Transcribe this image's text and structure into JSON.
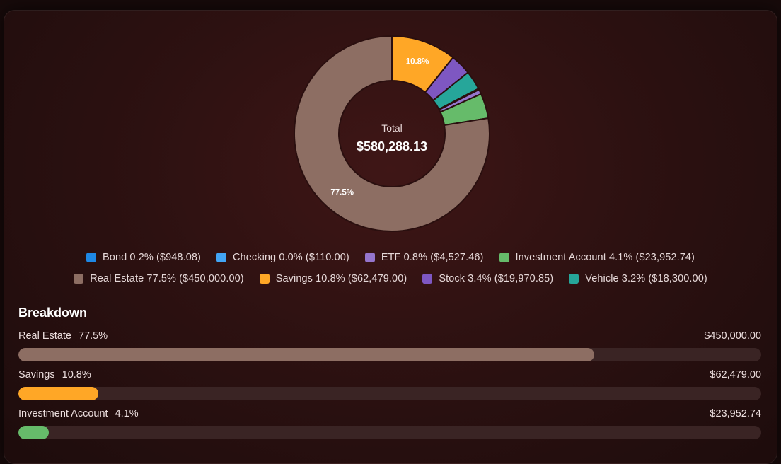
{
  "chart_data": {
    "type": "pie",
    "center_label": "Total",
    "center_value": "$580,288.13",
    "slices": [
      {
        "name": "Bond",
        "percent": 0.2,
        "value": 948.08,
        "legend": "Bond 0.2% ($948.08)",
        "color": "#1e88e5"
      },
      {
        "name": "Checking",
        "percent": 0.0,
        "value": 110.0,
        "legend": "Checking 0.0% ($110.00)",
        "color": "#42a5f5"
      },
      {
        "name": "ETF",
        "percent": 0.8,
        "value": 4527.46,
        "legend": "ETF 0.8% ($4,527.46)",
        "color": "#9575cd"
      },
      {
        "name": "Investment Account",
        "percent": 4.1,
        "value": 23952.74,
        "legend": "Investment Account 4.1% ($23,952.74)",
        "color": "#66bb6a"
      },
      {
        "name": "Real Estate",
        "percent": 77.5,
        "value": 450000.0,
        "legend": "Real Estate 77.5% ($450,000.00)",
        "color": "#8d6e63",
        "label": "77.5%"
      },
      {
        "name": "Savings",
        "percent": 10.8,
        "value": 62479.0,
        "legend": "Savings 10.8% ($62,479.00)",
        "color": "#ffa726",
        "label": "10.8%"
      },
      {
        "name": "Stock",
        "percent": 3.4,
        "value": 19970.85,
        "legend": "Stock 3.4% ($19,970.85)",
        "color": "#7e57c2"
      },
      {
        "name": "Vehicle",
        "percent": 3.2,
        "value": 18300.0,
        "legend": "Vehicle 3.2% ($18,300.00)",
        "color": "#26a69a"
      }
    ],
    "draw_order": [
      "Savings",
      "Stock",
      "Vehicle",
      "Checking",
      "Bond",
      "ETF",
      "Investment Account",
      "Real Estate"
    ]
  },
  "breakdown": {
    "title": "Breakdown",
    "rows": [
      {
        "name": "Real Estate",
        "pct": "77.5%",
        "amount": "$450,000.00",
        "fraction": 0.775,
        "color": "#8d6e63"
      },
      {
        "name": "Savings",
        "pct": "10.8%",
        "amount": "$62,479.00",
        "fraction": 0.108,
        "color": "#ffa726"
      },
      {
        "name": "Investment Account",
        "pct": "4.1%",
        "amount": "$23,952.74",
        "fraction": 0.041,
        "color": "#66bb6a"
      }
    ]
  }
}
